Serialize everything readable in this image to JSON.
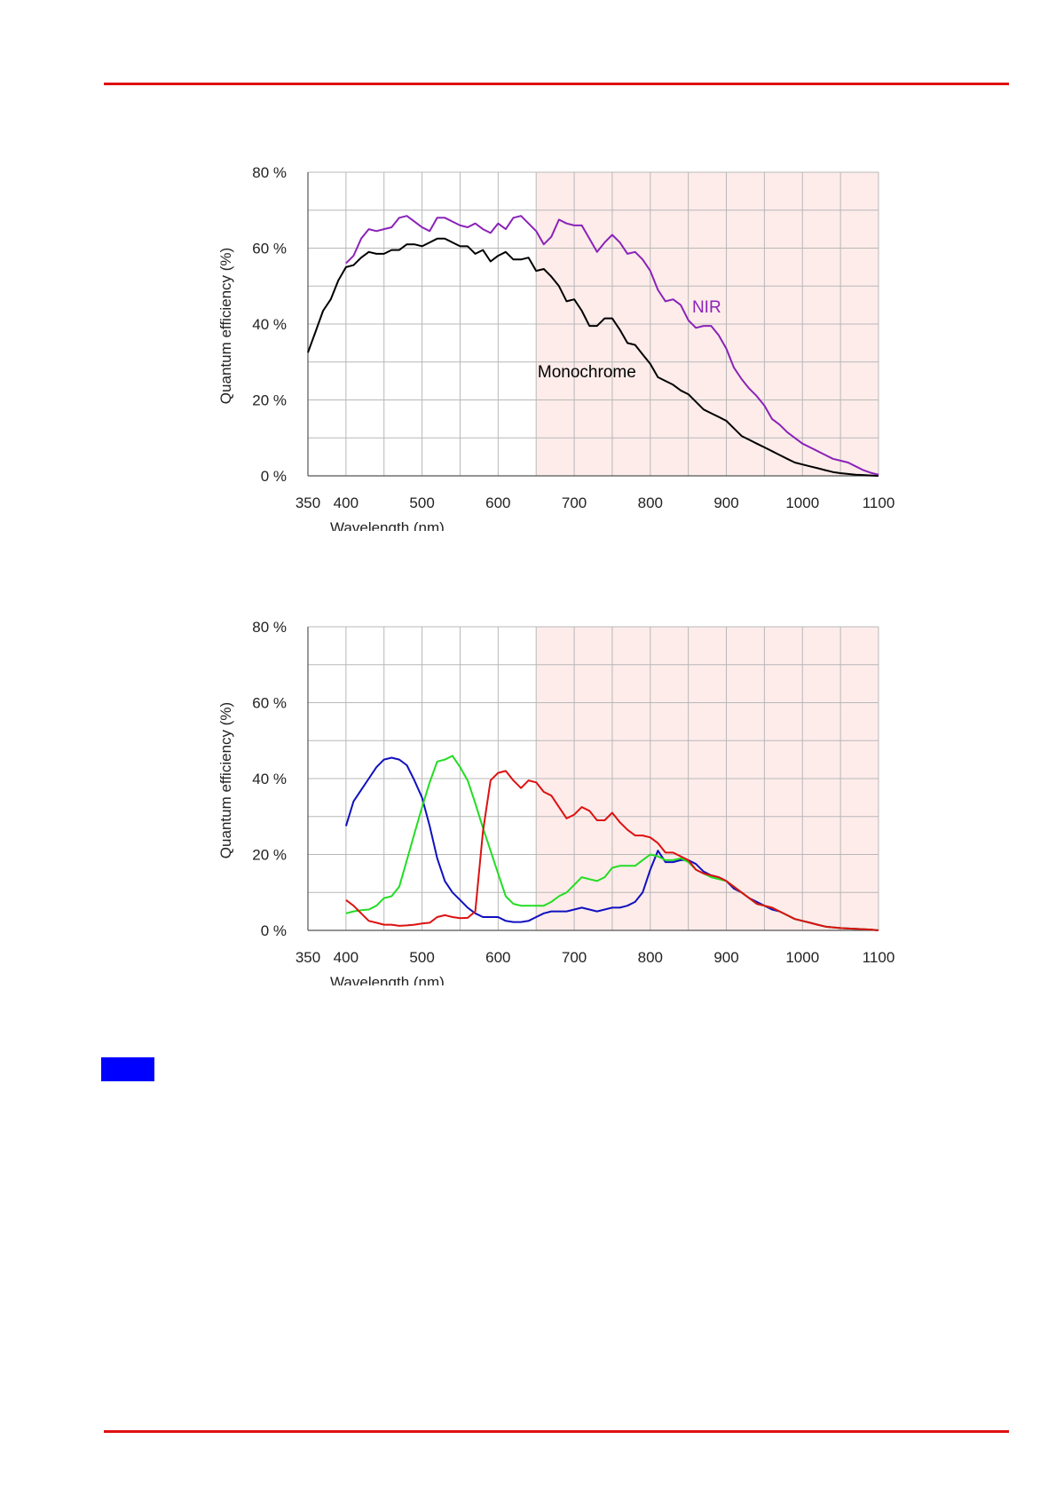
{
  "page": {
    "rule_color": "#e01010",
    "marker_color": "#0000ff"
  },
  "chart_data": [
    {
      "type": "line",
      "xlabel": "Wavelength (nm)",
      "ylabel": "Quantum efficiency (%)",
      "xlim": [
        350,
        1100
      ],
      "ylim": [
        0,
        80
      ],
      "x_ticks": [
        350,
        400,
        500,
        600,
        700,
        800,
        900,
        1000,
        1100
      ],
      "x_tick_labels": [
        "350",
        "400",
        "500",
        "600",
        "700",
        "800",
        "900",
        "1000",
        "1100"
      ],
      "y_ticks": [
        0,
        20,
        40,
        60,
        80
      ],
      "y_tick_labels": [
        "0 %",
        "20 %",
        "40 %",
        "60 %",
        "80 %"
      ],
      "grid": true,
      "shaded_region": {
        "from": 650,
        "to": 1100,
        "color": "#fdecea"
      },
      "series": [
        {
          "name": "Monochrome",
          "color": "#000000",
          "x": [
            350,
            360,
            370,
            380,
            390,
            400,
            410,
            420,
            430,
            440,
            450,
            460,
            470,
            480,
            490,
            500,
            510,
            520,
            530,
            540,
            550,
            560,
            570,
            580,
            590,
            600,
            610,
            620,
            630,
            640,
            650,
            660,
            670,
            680,
            690,
            700,
            710,
            720,
            730,
            740,
            750,
            760,
            770,
            780,
            790,
            800,
            810,
            820,
            830,
            840,
            850,
            860,
            870,
            880,
            890,
            900,
            910,
            920,
            930,
            940,
            950,
            960,
            970,
            980,
            990,
            1000,
            1010,
            1020,
            1030,
            1040,
            1050,
            1060,
            1070,
            1080,
            1090,
            1100
          ],
          "y": [
            32.5,
            38,
            43.5,
            46.5,
            51.5,
            55,
            55.5,
            57.5,
            59,
            58.5,
            58.5,
            59.5,
            59.5,
            61,
            61,
            60.5,
            61.5,
            62.5,
            62.5,
            61.5,
            60.5,
            60.5,
            58.5,
            59.5,
            56.5,
            58,
            59,
            57,
            57,
            57.5,
            54,
            54.5,
            52.5,
            50,
            46,
            46.5,
            43.5,
            39.5,
            39.5,
            41.5,
            41.5,
            38.5,
            35,
            34.5,
            32,
            29.5,
            26,
            25,
            24,
            22.5,
            21.5,
            19.5,
            17.5,
            16.5,
            15.5,
            14.5,
            12.5,
            10.5,
            9.5,
            8.5,
            7.5,
            6.5,
            5.5,
            4.5,
            3.5,
            3,
            2.5,
            2,
            1.5,
            1,
            0.7,
            0.5,
            0.3,
            0.2,
            0.1,
            0
          ]
        },
        {
          "name": "NIR",
          "color": "#8a22b8",
          "x": [
            400,
            410,
            420,
            430,
            440,
            450,
            460,
            470,
            480,
            490,
            500,
            510,
            520,
            530,
            540,
            550,
            560,
            570,
            580,
            590,
            600,
            610,
            620,
            630,
            640,
            650,
            660,
            670,
            680,
            690,
            700,
            710,
            720,
            730,
            740,
            750,
            760,
            770,
            780,
            790,
            800,
            810,
            820,
            830,
            840,
            850,
            860,
            870,
            880,
            890,
            900,
            910,
            920,
            930,
            940,
            950,
            960,
            970,
            980,
            990,
            1000,
            1010,
            1020,
            1030,
            1040,
            1050,
            1060,
            1070,
            1080,
            1090,
            1100
          ],
          "y": [
            56,
            58,
            62.5,
            65,
            64.5,
            65,
            65.5,
            68,
            68.5,
            67,
            65.5,
            64.5,
            68,
            68,
            67,
            66,
            65.5,
            66.5,
            65,
            64,
            66.5,
            65,
            68,
            68.5,
            66.5,
            64.5,
            61,
            63,
            67.5,
            66.5,
            66,
            66,
            62.5,
            59,
            61.5,
            63.5,
            61.5,
            58.5,
            59,
            57,
            54,
            49,
            46,
            46.5,
            45,
            41,
            39,
            39.5,
            39.5,
            37,
            33.5,
            28.5,
            25.5,
            23,
            21,
            18.5,
            15,
            13.5,
            11.5,
            10,
            8.5,
            7.5,
            6.5,
            5.5,
            4.5,
            4,
            3.5,
            2.5,
            1.5,
            0.8,
            0.3
          ]
        }
      ],
      "annotations": [
        {
          "text": "NIR",
          "x": 855,
          "y": 43,
          "color": "#8a22b8"
        },
        {
          "text": "Monochrome",
          "x": 652,
          "y": 26,
          "color": "#000000"
        }
      ]
    },
    {
      "type": "line",
      "xlabel": "Wavelength (nm)",
      "ylabel": "Quantum efficiency (%)",
      "xlim": [
        350,
        1100
      ],
      "ylim": [
        0,
        80
      ],
      "x_ticks": [
        350,
        400,
        500,
        600,
        700,
        800,
        900,
        1000,
        1100
      ],
      "x_tick_labels": [
        "350",
        "400",
        "500",
        "600",
        "700",
        "800",
        "900",
        "1000",
        "1100"
      ],
      "y_ticks": [
        0,
        20,
        40,
        60,
        80
      ],
      "y_tick_labels": [
        "0 %",
        "20 %",
        "40 %",
        "60 %",
        "80 %"
      ],
      "grid": true,
      "shaded_region": {
        "from": 650,
        "to": 1100,
        "color": "#fdecea"
      },
      "series": [
        {
          "color": "#1010c0",
          "x": [
            400,
            410,
            420,
            430,
            440,
            450,
            460,
            470,
            480,
            490,
            500,
            510,
            520,
            530,
            540,
            550,
            560,
            570,
            580,
            590,
            600,
            610,
            620,
            630,
            640,
            650,
            660,
            670,
            680,
            690,
            700,
            710,
            720,
            730,
            740,
            750,
            760,
            770,
            780,
            790,
            800,
            810,
            820,
            830,
            840,
            850,
            860,
            870,
            880,
            890,
            900,
            910,
            920,
            930,
            940,
            950,
            960,
            970,
            980,
            990,
            1000,
            1010,
            1020,
            1030,
            1040,
            1050,
            1060,
            1070,
            1080,
            1090,
            1100
          ],
          "y": [
            27.5,
            34,
            37,
            40,
            43,
            45,
            45.5,
            45,
            43.5,
            39.5,
            35,
            27.5,
            19,
            13,
            10,
            8,
            6,
            4.5,
            3.5,
            3.5,
            3.5,
            2.5,
            2.2,
            2.2,
            2.5,
            3.5,
            4.5,
            5,
            5,
            5,
            5.5,
            6,
            5.5,
            5,
            5.5,
            6,
            6,
            6.5,
            7.5,
            10,
            16,
            21,
            18,
            18,
            18.5,
            18.5,
            17.5,
            15.5,
            14.5,
            14,
            13,
            11,
            10,
            8.5,
            7.5,
            6.5,
            5.5,
            5,
            4,
            3,
            2.5,
            2,
            1.5,
            1,
            0.8,
            0.6,
            0.5,
            0.4,
            0.3,
            0.2,
            0
          ]
        },
        {
          "color": "#22dd22",
          "x": [
            400,
            410,
            420,
            430,
            440,
            450,
            460,
            470,
            480,
            490,
            500,
            510,
            520,
            530,
            540,
            550,
            560,
            570,
            580,
            590,
            600,
            610,
            620,
            630,
            640,
            650,
            660,
            670,
            680,
            690,
            700,
            710,
            720,
            730,
            740,
            750,
            760,
            770,
            780,
            790,
            800,
            810,
            820,
            830,
            840,
            850,
            860,
            870,
            880,
            890,
            900,
            910,
            920,
            930,
            940,
            950,
            960,
            970,
            980,
            990,
            1000,
            1010,
            1020,
            1030,
            1040,
            1050,
            1060,
            1070,
            1080,
            1090,
            1100
          ],
          "y": [
            4.5,
            5,
            5.3,
            5.5,
            6.5,
            8.5,
            9,
            11.5,
            18.5,
            25.5,
            32.5,
            39,
            44.5,
            45,
            46,
            43,
            39.5,
            33.5,
            27,
            21,
            15,
            9,
            7,
            6.5,
            6.5,
            6.5,
            6.5,
            7.5,
            9,
            10,
            12,
            14,
            13.5,
            13,
            14,
            16.5,
            17,
            17,
            17,
            18.5,
            20,
            19.5,
            18.5,
            18.5,
            19,
            18,
            16,
            15,
            14,
            13.5,
            13,
            11.5,
            10,
            8.5,
            7,
            6.5,
            6,
            5,
            4,
            3,
            2.5,
            2,
            1.5,
            1,
            0.8,
            0.6,
            0.5,
            0.4,
            0.3,
            0.2,
            0
          ]
        },
        {
          "color": "#dd1111",
          "x": [
            400,
            410,
            420,
            430,
            440,
            450,
            460,
            470,
            480,
            490,
            500,
            510,
            520,
            530,
            540,
            550,
            560,
            570,
            580,
            590,
            600,
            610,
            620,
            630,
            640,
            650,
            660,
            670,
            680,
            690,
            700,
            710,
            720,
            730,
            740,
            750,
            760,
            770,
            780,
            790,
            800,
            810,
            820,
            830,
            840,
            850,
            860,
            870,
            880,
            890,
            900,
            910,
            920,
            930,
            940,
            950,
            960,
            970,
            980,
            990,
            1000,
            1010,
            1020,
            1030,
            1040,
            1050,
            1060,
            1070,
            1080,
            1090,
            1100
          ],
          "y": [
            8,
            6.5,
            4.5,
            2.5,
            2,
            1.5,
            1.5,
            1.2,
            1.3,
            1.5,
            1.8,
            2,
            3.5,
            4,
            3.5,
            3.2,
            3.3,
            5,
            26,
            39.5,
            41.5,
            42,
            39.5,
            37.5,
            39.5,
            39,
            36.5,
            35.5,
            32.5,
            29.5,
            30.5,
            32.5,
            31.5,
            29,
            29,
            31,
            28.5,
            26.5,
            25,
            25,
            24.5,
            23,
            20.5,
            20.5,
            19.5,
            18.5,
            16,
            15,
            14.5,
            14,
            13,
            11.5,
            10,
            8.5,
            7,
            6.5,
            6,
            5,
            4,
            3,
            2.5,
            2,
            1.5,
            1,
            0.8,
            0.6,
            0.5,
            0.4,
            0.3,
            0.2,
            0
          ]
        }
      ]
    }
  ]
}
